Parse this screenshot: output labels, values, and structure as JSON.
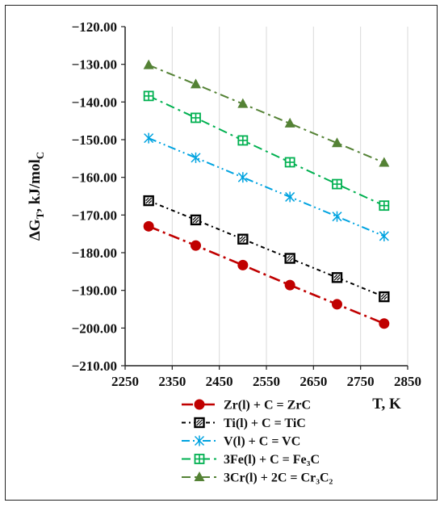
{
  "chart_data": {
    "type": "line",
    "xlabel": "T, K",
    "ylabel": "ΔG",
    "ylabel_sub1": "T",
    "ylabel_mid": ", kJ/mol",
    "ylabel_sub2": "C",
    "xlim": [
      2250,
      2850
    ],
    "ylim": [
      -210,
      -120
    ],
    "x_ticks": [
      2250,
      2350,
      2450,
      2550,
      2650,
      2750,
      2850
    ],
    "x_tick_labels": [
      "2250",
      "2350",
      "2450",
      "2550",
      "2650",
      "2750",
      "2850"
    ],
    "y_ticks": [
      -120,
      -130,
      -140,
      -150,
      -160,
      -170,
      -180,
      -190,
      -200,
      -210
    ],
    "y_tick_labels": [
      "−120.00",
      "−130.00",
      "−140.00",
      "−150.00",
      "−160.00",
      "−170.00",
      "−180.00",
      "−190.00",
      "−200.00",
      "−210.00"
    ],
    "grid": "vertical",
    "legend_position": "bottom",
    "x": [
      2300,
      2400,
      2500,
      2600,
      2700,
      2800
    ],
    "series": [
      {
        "name": "Zr(l) + C = ZrC",
        "marker": "circle",
        "color": "#c00000",
        "values": [
          -173.0,
          -178.1,
          -183.3,
          -188.6,
          -193.7,
          -198.8
        ]
      },
      {
        "name": "Ti(l) + C = TiC",
        "marker": "hatched-square",
        "color": "#000000",
        "values": [
          -166.2,
          -171.3,
          -176.4,
          -181.5,
          -186.6,
          -191.7
        ]
      },
      {
        "name": "V(l) + C = VC",
        "marker": "asterisk",
        "color": "#00a3e0",
        "values": [
          -149.6,
          -154.8,
          -160.0,
          -165.2,
          -170.4,
          -175.6
        ]
      },
      {
        "name": "3Fe(l) + C = Fe₃C",
        "marker": "boxed-plus",
        "color": "#00b050",
        "values": [
          -138.4,
          -144.2,
          -150.2,
          -156.0,
          -161.8,
          -167.5
        ]
      },
      {
        "name": "3Cr(l) + 2C = Cr₃C₂",
        "marker": "triangle",
        "color": "#548235",
        "values": [
          -130.2,
          -135.3,
          -140.5,
          -145.7,
          -150.9,
          -156.1
        ]
      }
    ]
  }
}
